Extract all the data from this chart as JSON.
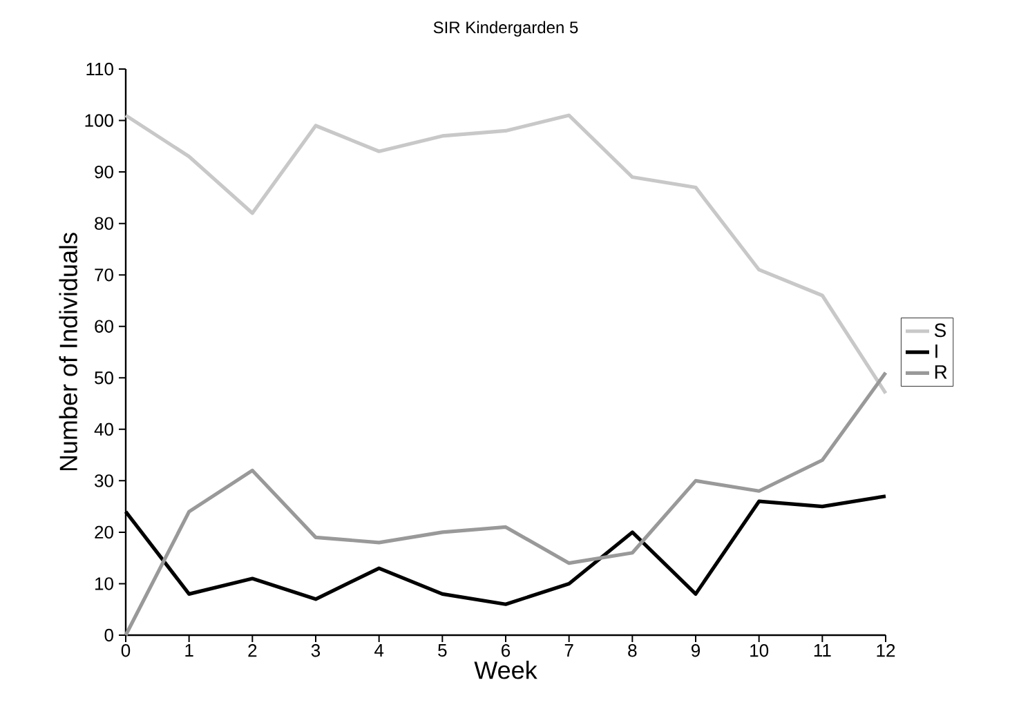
{
  "chart_data": {
    "type": "line",
    "title": "SIR Kindergarden 5",
    "xlabel": "Week",
    "ylabel": "Number of Individuals",
    "x": [
      0,
      1,
      2,
      3,
      4,
      5,
      6,
      7,
      8,
      9,
      10,
      11,
      12
    ],
    "xlim": [
      0,
      12
    ],
    "xticks": [
      0,
      1,
      2,
      3,
      4,
      5,
      6,
      7,
      8,
      9,
      10,
      11,
      12
    ],
    "ylim": [
      0,
      110
    ],
    "yticks": [
      0,
      10,
      20,
      30,
      40,
      50,
      60,
      70,
      80,
      90,
      100,
      110
    ],
    "grid": false,
    "legend": "right",
    "marker": "none",
    "line_style": "solid",
    "series": [
      {
        "name": "S",
        "color": "#c8c8c8",
        "values": [
          101,
          93,
          82,
          99,
          94,
          97,
          98,
          101,
          89,
          87,
          71,
          66,
          47
        ]
      },
      {
        "name": "I",
        "color": "#000000",
        "values": [
          24,
          8,
          11,
          7,
          13,
          8,
          6,
          10,
          20,
          8,
          26,
          25,
          27
        ]
      },
      {
        "name": "R",
        "color": "#999999",
        "values": [
          0,
          24,
          32,
          19,
          18,
          20,
          21,
          14,
          16,
          30,
          28,
          34,
          51
        ]
      }
    ]
  }
}
